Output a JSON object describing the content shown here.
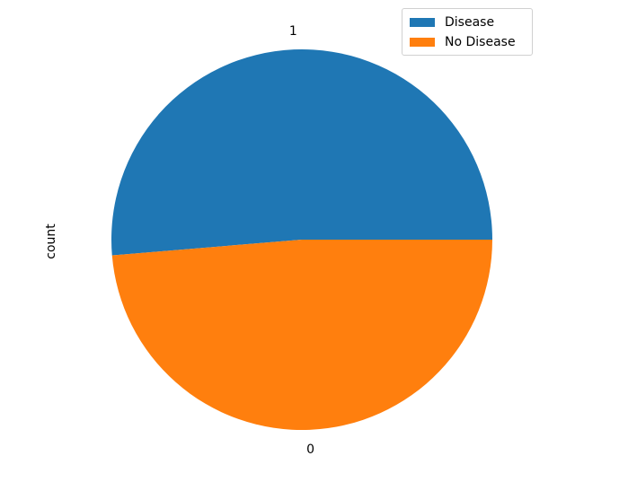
{
  "chart_data": {
    "type": "pie",
    "ylabel": "count",
    "slices": [
      {
        "label": "1",
        "legend": "Disease",
        "value": 526,
        "color": "#1f77b4"
      },
      {
        "label": "0",
        "legend": "No Disease",
        "value": 499,
        "color": "#ff7f0e"
      }
    ],
    "start_angle_deg": 0,
    "direction": "counterclockwise",
    "legend_position": "top-right"
  }
}
